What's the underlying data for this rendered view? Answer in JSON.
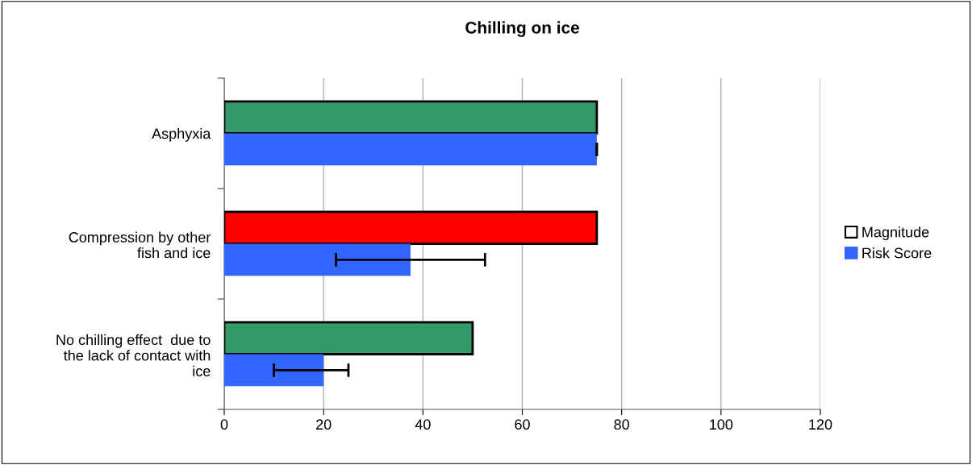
{
  "chart_data": {
    "type": "bar",
    "orientation": "horizontal",
    "title": "Chilling on ice",
    "categories": [
      "Asphyxia",
      "Compression by other\nfish and ice",
      "No chilling effect  due to\nthe lack of contact with\nice"
    ],
    "series": [
      {
        "name": "Magnitude",
        "color": "#ffffff",
        "colors": [
          "#339966",
          "#ff0000",
          "#339966"
        ],
        "values": [
          75,
          75,
          50
        ]
      },
      {
        "name": "Risk Score",
        "color": "#3366ff",
        "values": [
          75,
          37.5,
          20
        ],
        "errors": [
          0,
          15,
          [
            10,
            25
          ]
        ]
      }
    ],
    "xlim": [
      0,
      120
    ],
    "xticks": [
      0,
      20,
      40,
      60,
      80,
      100,
      120
    ],
    "grid": "x",
    "legend": "right"
  }
}
